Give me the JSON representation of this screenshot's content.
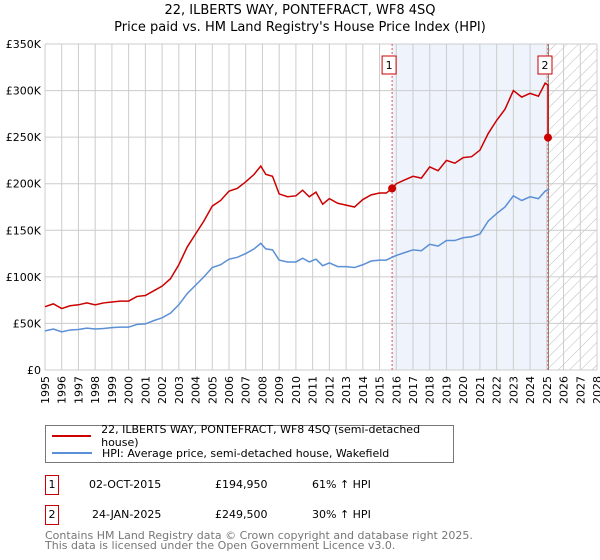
{
  "chart_data": {
    "type": "line",
    "title": "22, ILBERTS WAY, PONTEFRACT, WF8 4SQ",
    "subtitle": "Price paid vs. HM Land Registry's House Price Index (HPI)",
    "xlabel": "",
    "ylabel": "",
    "xlim": [
      1995,
      2028
    ],
    "ylim": [
      0,
      350000
    ],
    "x_ticks": [
      "1995",
      "1996",
      "1997",
      "1998",
      "1999",
      "2000",
      "2001",
      "2002",
      "2003",
      "2004",
      "2005",
      "2006",
      "2007",
      "2008",
      "2009",
      "2010",
      "2011",
      "2012",
      "2013",
      "2014",
      "2015",
      "2016",
      "2017",
      "2018",
      "2019",
      "2020",
      "2021",
      "2022",
      "2023",
      "2024",
      "2025",
      "2026",
      "2027",
      "2028"
    ],
    "y_ticks": [
      {
        "v": 0,
        "label": "£0"
      },
      {
        "v": 50000,
        "label": "£50K"
      },
      {
        "v": 100000,
        "label": "£100K"
      },
      {
        "v": 150000,
        "label": "£150K"
      },
      {
        "v": 200000,
        "label": "£200K"
      },
      {
        "v": 250000,
        "label": "£250K"
      },
      {
        "v": 300000,
        "label": "£300K"
      },
      {
        "v": 350000,
        "label": "£350K"
      }
    ],
    "grid": true,
    "series": [
      {
        "name": "22, ILBERTS WAY, PONTEFRACT, WF8 4SQ (semi-detached house)",
        "color": "#cc0000",
        "x": [
          1995,
          1995.5,
          1996,
          1996.5,
          1997,
          1997.5,
          1998,
          1998.5,
          1999,
          1999.5,
          2000,
          2000.5,
          2001,
          2001.5,
          2002,
          2002.5,
          2003,
          2003.5,
          2004,
          2004.5,
          2005,
          2005.5,
          2006,
          2006.5,
          2007,
          2007.5,
          2007.9,
          2008.2,
          2008.6,
          2009,
          2009.5,
          2010,
          2010.4,
          2010.8,
          2011.2,
          2011.6,
          2012,
          2012.5,
          2013,
          2013.5,
          2014,
          2014.5,
          2015,
          2015.4,
          2015.75,
          2016,
          2016.5,
          2017,
          2017.5,
          2018,
          2018.5,
          2019,
          2019.5,
          2020,
          2020.5,
          2021,
          2021.5,
          2022,
          2022.5,
          2023,
          2023.5,
          2024,
          2024.5,
          2024.9,
          2025.07,
          2025.07,
          2025.15
        ],
        "y": [
          68000,
          71000,
          66000,
          69000,
          70000,
          72000,
          70000,
          72000,
          73000,
          74000,
          74000,
          79000,
          80000,
          85000,
          90000,
          98000,
          113000,
          132000,
          146000,
          160000,
          176000,
          182000,
          192000,
          195000,
          202000,
          210000,
          219000,
          210000,
          208000,
          189000,
          186000,
          187000,
          193000,
          186000,
          191000,
          178000,
          184000,
          179000,
          177000,
          175000,
          183000,
          188000,
          190000,
          190000,
          194950,
          200000,
          204000,
          208000,
          206000,
          218000,
          214000,
          225000,
          222000,
          228000,
          229000,
          236000,
          254000,
          268000,
          280000,
          300000,
          293000,
          297000,
          294000,
          308000,
          306000,
          249500,
          249500
        ]
      },
      {
        "name": "HPI: Average price, semi-detached house, Wakefield",
        "color": "#5b8fd6",
        "x": [
          1995,
          1995.5,
          1996,
          1996.5,
          1997,
          1997.5,
          1998,
          1998.5,
          1999,
          1999.5,
          2000,
          2000.5,
          2001,
          2001.5,
          2002,
          2002.5,
          2003,
          2003.5,
          2004,
          2004.5,
          2005,
          2005.5,
          2006,
          2006.5,
          2007,
          2007.5,
          2007.9,
          2008.2,
          2008.6,
          2009,
          2009.5,
          2010,
          2010.4,
          2010.8,
          2011.2,
          2011.6,
          2012,
          2012.5,
          2013,
          2013.5,
          2014,
          2014.5,
          2015,
          2015.4,
          2015.75,
          2016,
          2016.5,
          2017,
          2017.5,
          2018,
          2018.5,
          2019,
          2019.5,
          2020,
          2020.5,
          2021,
          2021.5,
          2022,
          2022.5,
          2023,
          2023.5,
          2024,
          2024.5,
          2024.9,
          2025.15
        ],
        "y": [
          42000,
          44000,
          41000,
          43000,
          43500,
          45000,
          44000,
          44500,
          45500,
          46000,
          46000,
          49000,
          49500,
          53000,
          56000,
          61000,
          70000,
          82000,
          91000,
          100000,
          110000,
          113000,
          119000,
          121000,
          125000,
          130000,
          136000,
          130000,
          129000,
          118000,
          116000,
          116000,
          120000,
          116000,
          119000,
          112000,
          115000,
          111000,
          111000,
          110000,
          113000,
          117000,
          118000,
          118000,
          121000,
          123000,
          126000,
          129000,
          128000,
          135000,
          133000,
          139000,
          139000,
          142000,
          143000,
          146000,
          160000,
          168000,
          175000,
          187000,
          182000,
          186000,
          184000,
          192000,
          194000
        ]
      }
    ],
    "sales": [
      {
        "label": "1",
        "x": 2015.75,
        "y": 194950
      },
      {
        "label": "2",
        "x": 2025.07,
        "y": 249500
      }
    ],
    "shaded_range": [
      2015.75,
      2025.07
    ],
    "forecast_hatch_from": 2025.1
  },
  "legend": {
    "items": [
      "22, ILBERTS WAY, PONTEFRACT, WF8 4SQ (semi-detached house)",
      "HPI: Average price, semi-detached house, Wakefield"
    ]
  },
  "table": [
    {
      "num": "1",
      "date": "02-OCT-2015",
      "price": "£194,950",
      "hpi": "61% ↑ HPI"
    },
    {
      "num": "2",
      "date": "24-JAN-2025",
      "price": "£249,500",
      "hpi": "30% ↑ HPI"
    }
  ],
  "footer": [
    "Contains HM Land Registry data © Crown copyright and database right 2025.",
    "This data is licensed under the Open Government Licence v3.0."
  ]
}
